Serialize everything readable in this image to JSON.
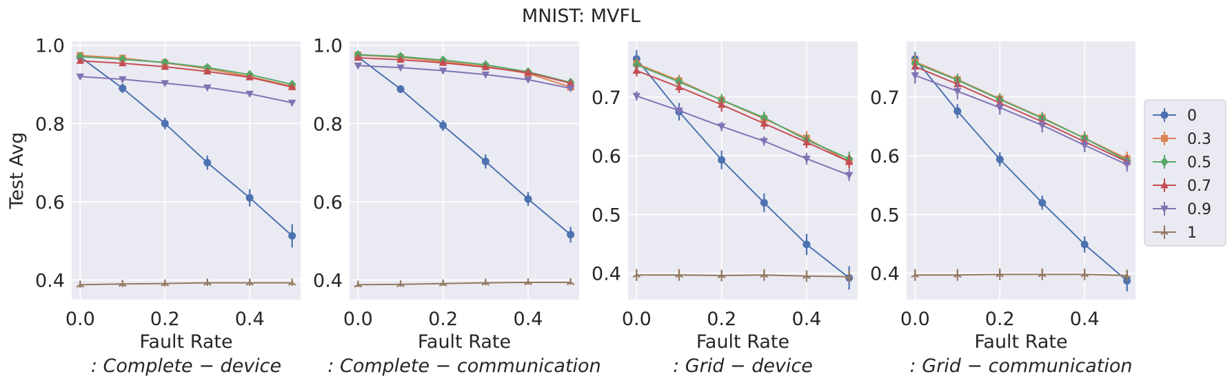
{
  "title": "MNIST: MVFL",
  "colors": [
    "#4c72b0",
    "#dd8452",
    "#55a868",
    "#c44e52",
    "#8172b3",
    "#937860"
  ],
  "legend": {
    "placement": "right",
    "entries": [
      "0",
      "0.3",
      "0.5",
      "0.7",
      "0.9",
      "1"
    ]
  },
  "chart_data": [
    {
      "type": "line",
      "title": "",
      "xlabel": "Fault Rate",
      "subtitle": ": Complete − device",
      "ylabel": "Test Avg",
      "xlim": [
        -0.02,
        0.52
      ],
      "ylim": [
        0.35,
        1.01
      ],
      "xticks": [
        "0.0",
        "0.2",
        "0.4"
      ],
      "yticks": [
        "0.4",
        "0.6",
        "0.8",
        "1.0"
      ],
      "x": [
        0.0,
        0.1,
        0.2,
        0.3,
        0.4,
        0.5
      ],
      "series": [
        {
          "name": "0",
          "marker": "circle",
          "values": [
            0.97,
            0.89,
            0.8,
            0.7,
            0.61,
            0.513
          ],
          "err": [
            0.01,
            0.012,
            0.015,
            0.018,
            0.022,
            0.03
          ]
        },
        {
          "name": "0.3",
          "marker": "square",
          "values": [
            0.974,
            0.967,
            0.955,
            0.94,
            0.92,
            0.895
          ],
          "err": [
            0.005,
            0.005,
            0.005,
            0.005,
            0.006,
            0.006
          ]
        },
        {
          "name": "0.5",
          "marker": "diamond",
          "values": [
            0.971,
            0.964,
            0.956,
            0.943,
            0.925,
            0.9
          ],
          "err": [
            0.005,
            0.005,
            0.005,
            0.005,
            0.006,
            0.006
          ]
        },
        {
          "name": "0.7",
          "marker": "triangle-up",
          "values": [
            0.96,
            0.954,
            0.945,
            0.933,
            0.918,
            0.893
          ],
          "err": [
            0.005,
            0.005,
            0.005,
            0.005,
            0.006,
            0.006
          ]
        },
        {
          "name": "0.9",
          "marker": "triangle-down",
          "values": [
            0.92,
            0.913,
            0.903,
            0.892,
            0.876,
            0.853
          ],
          "err": [
            0.005,
            0.005,
            0.005,
            0.005,
            0.006,
            0.006
          ]
        },
        {
          "name": "1",
          "marker": "tri",
          "values": [
            0.388,
            0.39,
            0.391,
            0.393,
            0.393,
            0.393
          ],
          "err": [
            0.008,
            0.008,
            0.008,
            0.008,
            0.008,
            0.008
          ]
        }
      ]
    },
    {
      "type": "line",
      "title": "",
      "xlabel": "Fault Rate",
      "subtitle": ": Complete − communication",
      "ylabel": "",
      "xlim": [
        -0.02,
        0.52
      ],
      "ylim": [
        0.35,
        1.01
      ],
      "xticks": [
        "0.0",
        "0.2",
        "0.4"
      ],
      "yticks": [
        "0.4",
        "0.6",
        "0.8",
        "1.0"
      ],
      "x": [
        0.0,
        0.1,
        0.2,
        0.3,
        0.4,
        0.5
      ],
      "series": [
        {
          "name": "0",
          "marker": "circle",
          "values": [
            0.97,
            0.888,
            0.795,
            0.703,
            0.607,
            0.516
          ],
          "err": [
            0.008,
            0.01,
            0.014,
            0.018,
            0.018,
            0.02
          ]
        },
        {
          "name": "0.3",
          "marker": "square",
          "values": [
            0.975,
            0.969,
            0.958,
            0.946,
            0.928,
            0.893
          ],
          "err": [
            0.005,
            0.005,
            0.005,
            0.005,
            0.006,
            0.006
          ]
        },
        {
          "name": "0.5",
          "marker": "diamond",
          "values": [
            0.976,
            0.971,
            0.962,
            0.95,
            0.932,
            0.905
          ],
          "err": [
            0.005,
            0.005,
            0.005,
            0.005,
            0.006,
            0.006
          ]
        },
        {
          "name": "0.7",
          "marker": "triangle-up",
          "values": [
            0.968,
            0.963,
            0.955,
            0.944,
            0.93,
            0.903
          ],
          "err": [
            0.005,
            0.005,
            0.005,
            0.005,
            0.006,
            0.006
          ]
        },
        {
          "name": "0.9",
          "marker": "triangle-down",
          "values": [
            0.948,
            0.943,
            0.935,
            0.925,
            0.912,
            0.89
          ],
          "err": [
            0.005,
            0.005,
            0.005,
            0.005,
            0.006,
            0.006
          ]
        },
        {
          "name": "1",
          "marker": "tri",
          "values": [
            0.388,
            0.389,
            0.391,
            0.393,
            0.394,
            0.394
          ],
          "err": [
            0.006,
            0.006,
            0.006,
            0.006,
            0.006,
            0.006
          ]
        }
      ]
    },
    {
      "type": "line",
      "title": "",
      "xlabel": "Fault Rate",
      "subtitle": ": Grid − device",
      "ylabel": "",
      "xlim": [
        -0.02,
        0.52
      ],
      "ylim": [
        0.355,
        0.795
      ],
      "xticks": [
        "0.0",
        "0.2",
        "0.4"
      ],
      "yticks": [
        "0.4",
        "0.5",
        "0.6",
        "0.7"
      ],
      "x": [
        0.0,
        0.1,
        0.2,
        0.3,
        0.4,
        0.5
      ],
      "series": [
        {
          "name": "0",
          "marker": "circle",
          "values": [
            0.765,
            0.675,
            0.593,
            0.52,
            0.449,
            0.392
          ],
          "err": [
            0.015,
            0.015,
            0.016,
            0.016,
            0.018,
            0.02
          ]
        },
        {
          "name": "0.3",
          "marker": "square",
          "values": [
            0.757,
            0.728,
            0.695,
            0.663,
            0.63,
            0.59
          ],
          "err": [
            0.01,
            0.01,
            0.01,
            0.01,
            0.012,
            0.012
          ]
        },
        {
          "name": "0.5",
          "marker": "diamond",
          "values": [
            0.755,
            0.726,
            0.695,
            0.665,
            0.627,
            0.595
          ],
          "err": [
            0.01,
            0.01,
            0.01,
            0.01,
            0.01,
            0.012
          ]
        },
        {
          "name": "0.7",
          "marker": "triangle-up",
          "values": [
            0.745,
            0.717,
            0.687,
            0.655,
            0.623,
            0.59
          ],
          "err": [
            0.01,
            0.01,
            0.012,
            0.01,
            0.01,
            0.012
          ]
        },
        {
          "name": "0.9",
          "marker": "triangle-down",
          "values": [
            0.702,
            0.677,
            0.65,
            0.625,
            0.595,
            0.567
          ],
          "err": [
            0.008,
            0.008,
            0.008,
            0.008,
            0.01,
            0.01
          ]
        },
        {
          "name": "1",
          "marker": "tri",
          "values": [
            0.397,
            0.397,
            0.396,
            0.397,
            0.395,
            0.394
          ],
          "err": [
            0.01,
            0.01,
            0.01,
            0.01,
            0.01,
            0.01
          ]
        }
      ]
    },
    {
      "type": "line",
      "title": "",
      "xlabel": "Fault Rate",
      "subtitle": ": Grid − communication",
      "ylabel": "",
      "xlim": [
        -0.02,
        0.52
      ],
      "ylim": [
        0.355,
        0.795
      ],
      "xticks": [
        "0.0",
        "0.2",
        "0.4"
      ],
      "yticks": [
        "0.4",
        "0.5",
        "0.6",
        "0.7"
      ],
      "x": [
        0.0,
        0.1,
        0.2,
        0.3,
        0.4,
        0.5
      ],
      "series": [
        {
          "name": "0",
          "marker": "circle",
          "values": [
            0.765,
            0.676,
            0.594,
            0.52,
            0.449,
            0.387
          ],
          "err": [
            0.012,
            0.012,
            0.012,
            0.012,
            0.014,
            0.018
          ]
        },
        {
          "name": "0.3",
          "marker": "square",
          "values": [
            0.76,
            0.73,
            0.697,
            0.665,
            0.63,
            0.595
          ],
          "err": [
            0.012,
            0.01,
            0.01,
            0.01,
            0.012,
            0.012
          ]
        },
        {
          "name": "0.5",
          "marker": "diamond",
          "values": [
            0.758,
            0.729,
            0.696,
            0.664,
            0.63,
            0.592
          ],
          "err": [
            0.01,
            0.01,
            0.01,
            0.01,
            0.01,
            0.01
          ]
        },
        {
          "name": "0.7",
          "marker": "triangle-up",
          "values": [
            0.752,
            0.722,
            0.69,
            0.658,
            0.624,
            0.59
          ],
          "err": [
            0.012,
            0.012,
            0.012,
            0.01,
            0.01,
            0.012
          ]
        },
        {
          "name": "0.9",
          "marker": "triangle-down",
          "values": [
            0.737,
            0.71,
            0.682,
            0.652,
            0.618,
            0.585
          ],
          "err": [
            0.014,
            0.014,
            0.012,
            0.012,
            0.012,
            0.012
          ]
        },
        {
          "name": "1",
          "marker": "tri",
          "values": [
            0.397,
            0.397,
            0.398,
            0.398,
            0.398,
            0.396
          ],
          "err": [
            0.01,
            0.01,
            0.01,
            0.01,
            0.01,
            0.01
          ]
        }
      ]
    }
  ]
}
